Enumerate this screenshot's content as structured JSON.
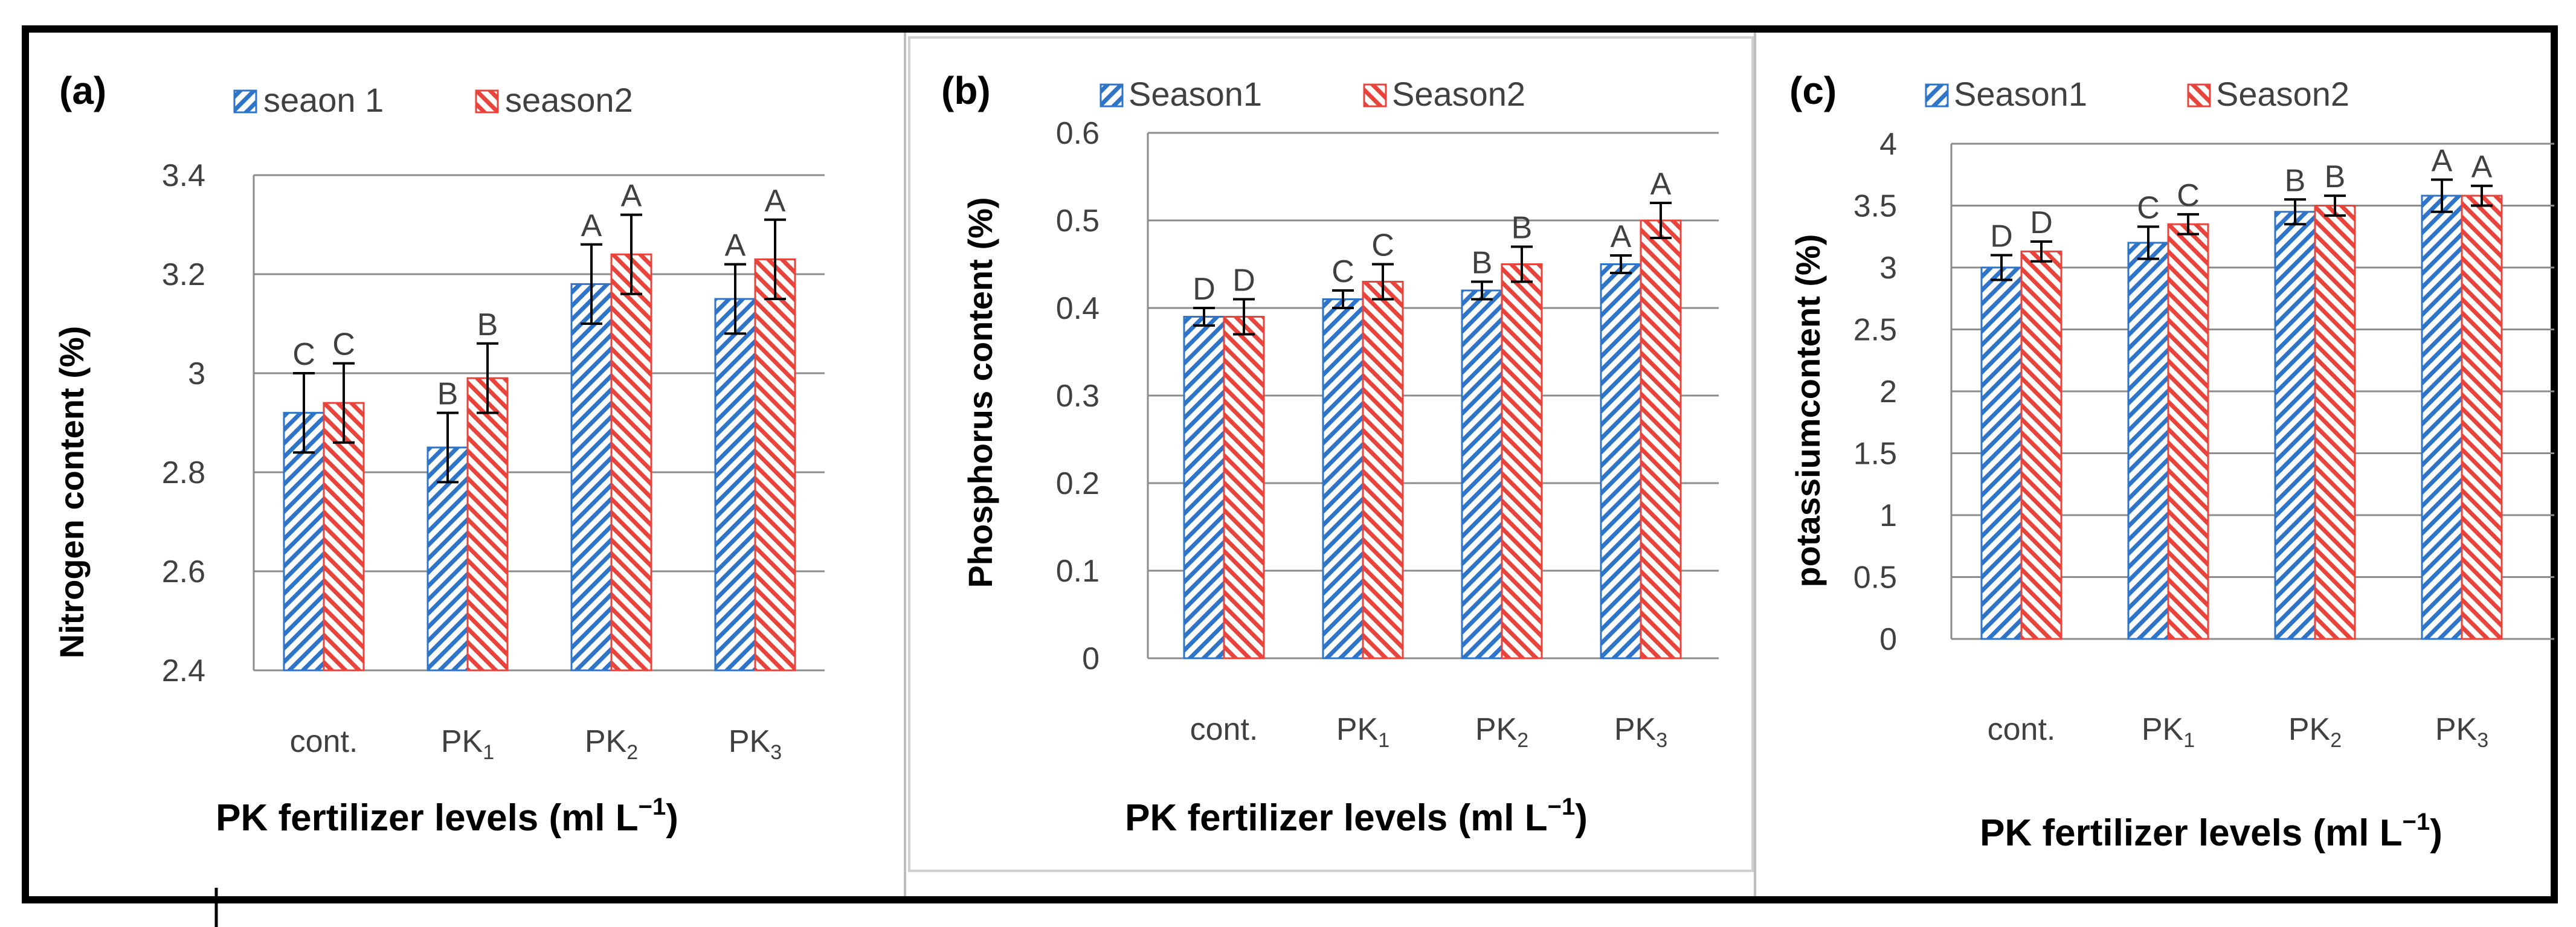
{
  "colors": {
    "season1": "#2e74c8",
    "season2": "#e8443c",
    "grid": "#8c8c8c",
    "frame": "#000000",
    "errorbar": "#000000"
  },
  "chart_data": [
    {
      "type": "bar",
      "panel_label": "(a)",
      "ylabel": "Nitrogen content (%)",
      "xlabel": "PK fertilizer levels (ml L",
      "xlabel_sup": "−1",
      "xlabel_end": ")",
      "categories": [
        {
          "base": "cont.",
          "sub": ""
        },
        {
          "base": "PK",
          "sub": "1"
        },
        {
          "base": "PK",
          "sub": "2"
        },
        {
          "base": "PK",
          "sub": "3"
        }
      ],
      "ylim": [
        2.4,
        3.4
      ],
      "yticks": [
        "2.4",
        "2.6",
        "2.8",
        "3",
        "3.2",
        "3.4"
      ],
      "grid": true,
      "legend_position": "top",
      "series": [
        {
          "name": "seaon 1",
          "values": [
            2.92,
            2.85,
            3.18,
            3.15
          ],
          "errors": [
            0.08,
            0.07,
            0.08,
            0.07
          ],
          "letters": [
            "C",
            "B",
            "A",
            "A"
          ]
        },
        {
          "name": "season2",
          "values": [
            2.94,
            2.99,
            3.24,
            3.23
          ],
          "errors": [
            0.08,
            0.07,
            0.08,
            0.08
          ],
          "letters": [
            "C",
            "B",
            "A",
            "A"
          ]
        }
      ]
    },
    {
      "type": "bar",
      "panel_label": "(b)",
      "ylabel": "Phosphorus  content (%)",
      "xlabel": "PK fertilizer levels (ml L",
      "xlabel_sup": "−1",
      "xlabel_end": ")",
      "categories": [
        {
          "base": "cont.",
          "sub": ""
        },
        {
          "base": "PK",
          "sub": "1"
        },
        {
          "base": "PK",
          "sub": "2"
        },
        {
          "base": "PK",
          "sub": "3"
        }
      ],
      "ylim": [
        0,
        0.6
      ],
      "yticks": [
        "0",
        "0.1",
        "0.2",
        "0.3",
        "0.4",
        "0.5",
        "0.6"
      ],
      "grid": true,
      "legend_position": "top",
      "series": [
        {
          "name": "Season1",
          "values": [
            0.39,
            0.41,
            0.42,
            0.45
          ],
          "errors": [
            0.01,
            0.01,
            0.01,
            0.01
          ],
          "letters": [
            "D",
            "C",
            "B",
            "A"
          ]
        },
        {
          "name": "Season2",
          "values": [
            0.39,
            0.43,
            0.45,
            0.5
          ],
          "errors": [
            0.02,
            0.02,
            0.02,
            0.02
          ],
          "letters": [
            "D",
            "C",
            "B",
            "A"
          ]
        }
      ]
    },
    {
      "type": "bar",
      "panel_label": "(c)",
      "ylabel": "potassiumcontent (%)",
      "xlabel": "PK fertilizer levels (ml L",
      "xlabel_sup": "−1",
      "xlabel_end": ")",
      "categories": [
        {
          "base": "cont.",
          "sub": ""
        },
        {
          "base": "PK",
          "sub": "1"
        },
        {
          "base": "PK",
          "sub": "2"
        },
        {
          "base": "PK",
          "sub": "3"
        }
      ],
      "ylim": [
        0,
        4
      ],
      "yticks": [
        "0",
        "0.5",
        "1",
        "1.5",
        "2",
        "2.5",
        "3",
        "3.5",
        "4"
      ],
      "grid": true,
      "legend_position": "top",
      "series": [
        {
          "name": "Season1",
          "values": [
            3.0,
            3.2,
            3.45,
            3.58
          ],
          "errors": [
            0.1,
            0.13,
            0.1,
            0.13
          ],
          "letters": [
            "D",
            "C",
            "B",
            "A"
          ]
        },
        {
          "name": "Season2",
          "values": [
            3.13,
            3.35,
            3.5,
            3.58
          ],
          "errors": [
            0.08,
            0.08,
            0.08,
            0.08
          ],
          "letters": [
            "D",
            "C",
            "B",
            "A"
          ]
        }
      ]
    }
  ]
}
